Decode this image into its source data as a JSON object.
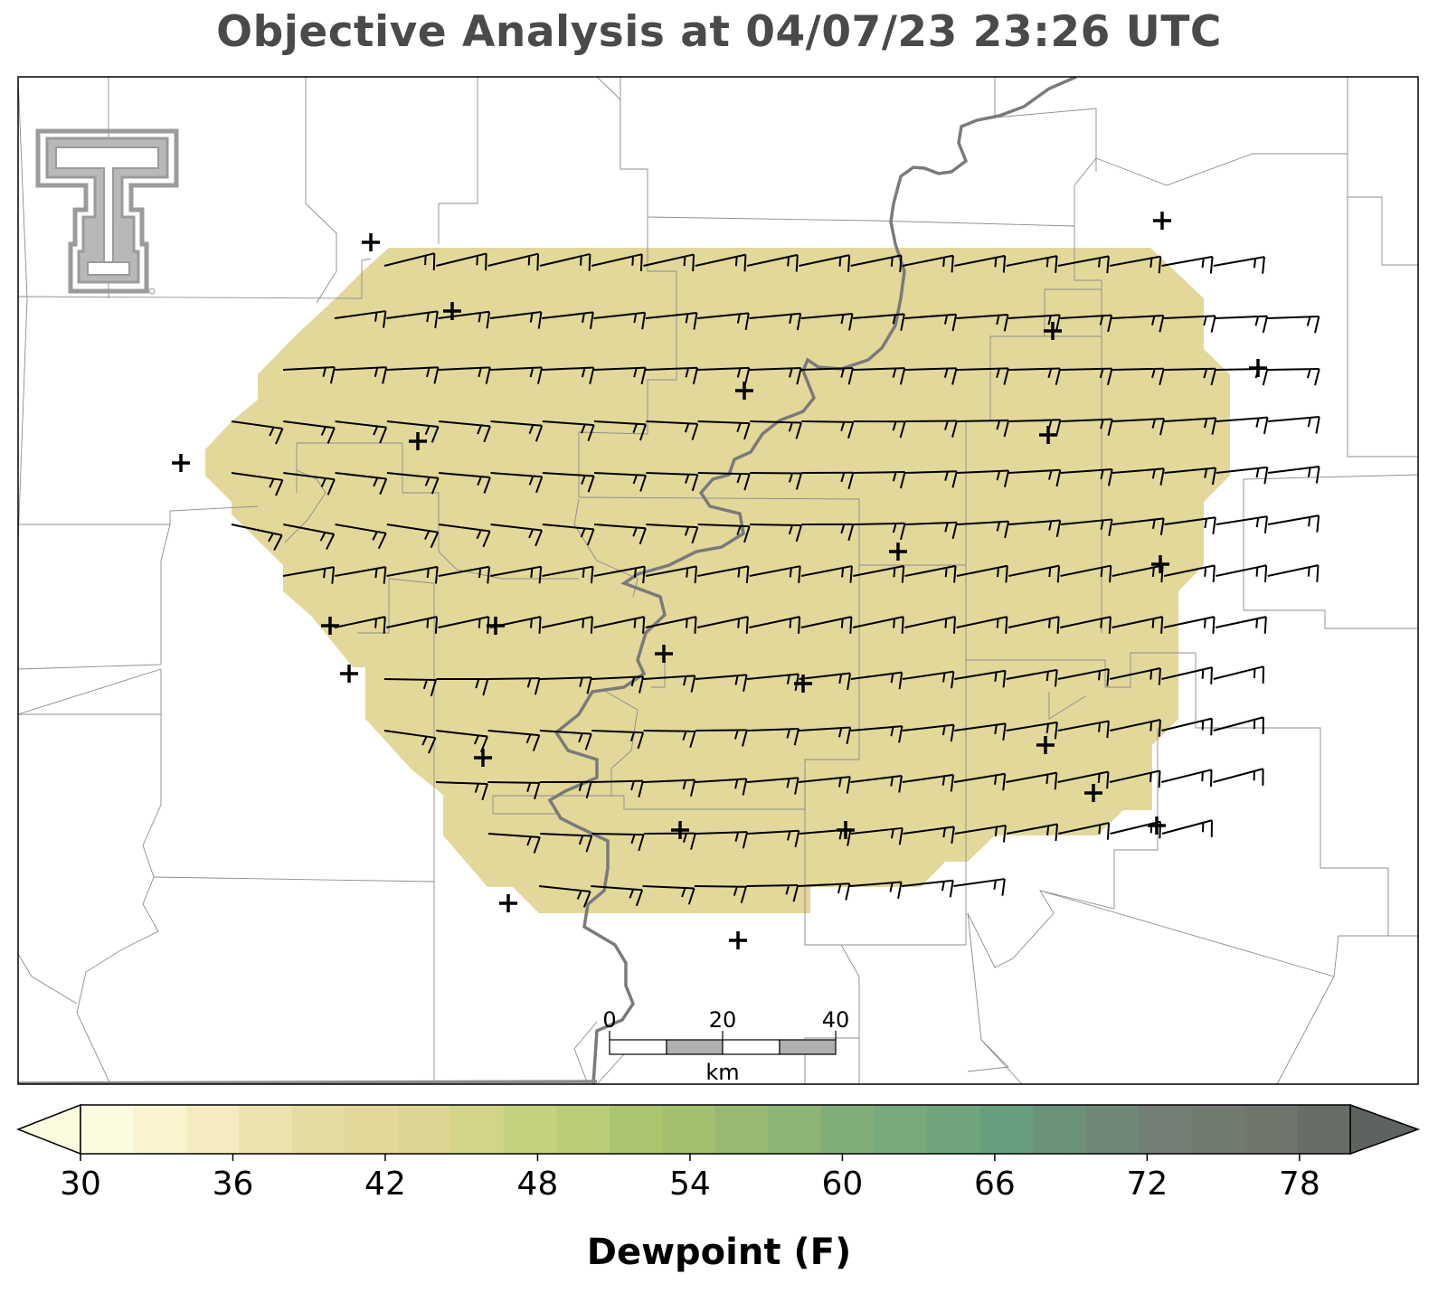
{
  "title": "Objective Analysis at 04/07/23 23:26 UTC",
  "map": {
    "field_color": "#e2d89a",
    "stations": [
      [
        410,
        268
      ],
      [
        500,
        344
      ],
      [
        823,
        432
      ],
      [
        462,
        488
      ],
      [
        200,
        512
      ],
      [
        1164,
        366
      ],
      [
        1391,
        407
      ],
      [
        1159,
        481
      ],
      [
        993,
        610
      ],
      [
        1283,
        624
      ],
      [
        365,
        692
      ],
      [
        548,
        692
      ],
      [
        734,
        723
      ],
      [
        386,
        745
      ],
      [
        888,
        756
      ],
      [
        1156,
        824
      ],
      [
        534,
        838
      ],
      [
        1209,
        877
      ],
      [
        752,
        918
      ],
      [
        935,
        918
      ],
      [
        1279,
        913
      ],
      [
        562,
        999
      ],
      [
        816,
        1040
      ],
      [
        1285,
        244
      ]
    ],
    "barb_rows": [
      {
        "y": 294,
        "x0": 425,
        "x1": 1355,
        "angle_start": -14,
        "angle_end": -10
      },
      {
        "y": 352,
        "x0": 370,
        "x1": 1414,
        "angle_start": -8,
        "angle_end": -2
      },
      {
        "y": 409,
        "x0": 313,
        "x1": 1414,
        "angle_start": -3,
        "angle_end": -1
      },
      {
        "y": 466,
        "x0": 256,
        "x1": 1414,
        "angle_start": 8,
        "angle_end": -5
      },
      {
        "y": 523,
        "x0": 256,
        "x1": 1414,
        "angle_start": 8,
        "angle_end": -7
      },
      {
        "y": 580,
        "x0": 256,
        "x1": 1414,
        "angle_start": 12,
        "angle_end": -10
      },
      {
        "y": 637,
        "x0": 313,
        "x1": 1414,
        "angle_start": -10,
        "angle_end": -12
      },
      {
        "y": 694,
        "x0": 370,
        "x1": 1355,
        "angle_start": -12,
        "angle_end": -12
      },
      {
        "y": 751,
        "x0": 425,
        "x1": 1355,
        "angle_start": 1,
        "angle_end": -14
      },
      {
        "y": 808,
        "x0": 425,
        "x1": 1355,
        "angle_start": 8,
        "angle_end": -15
      },
      {
        "y": 865,
        "x0": 482,
        "x1": 1355,
        "angle_start": 2,
        "angle_end": -15
      },
      {
        "y": 922,
        "x0": 540,
        "x1": 1296,
        "angle_start": 4,
        "angle_end": -15
      },
      {
        "y": 980,
        "x0": 596,
        "x1": 1070,
        "angle_start": 6,
        "angle_end": -8
      }
    ]
  },
  "scalebar": {
    "labels": [
      "0",
      "20",
      "40"
    ],
    "unit": "km"
  },
  "colorbar": {
    "title": "Dewpoint (F)",
    "min": 30,
    "max": 80,
    "tick_labels": [
      "30",
      "36",
      "42",
      "48",
      "54",
      "60",
      "66",
      "72",
      "78"
    ],
    "colors": [
      "#fdfbdf",
      "#f9f3cf",
      "#f4ecbe",
      "#ebe2ae",
      "#e5dca1",
      "#e2d89a",
      "#ddd692",
      "#d2d487",
      "#c6d17e",
      "#b9cd76",
      "#abc56f",
      "#a3c06f",
      "#97b971",
      "#8cb475",
      "#80ae78",
      "#76a97c",
      "#6ea57d",
      "#679e7d",
      "#6a9279",
      "#708878",
      "#737f74",
      "#727b70",
      "#6f776d",
      "#686d67",
      "#5f6360"
    ]
  }
}
